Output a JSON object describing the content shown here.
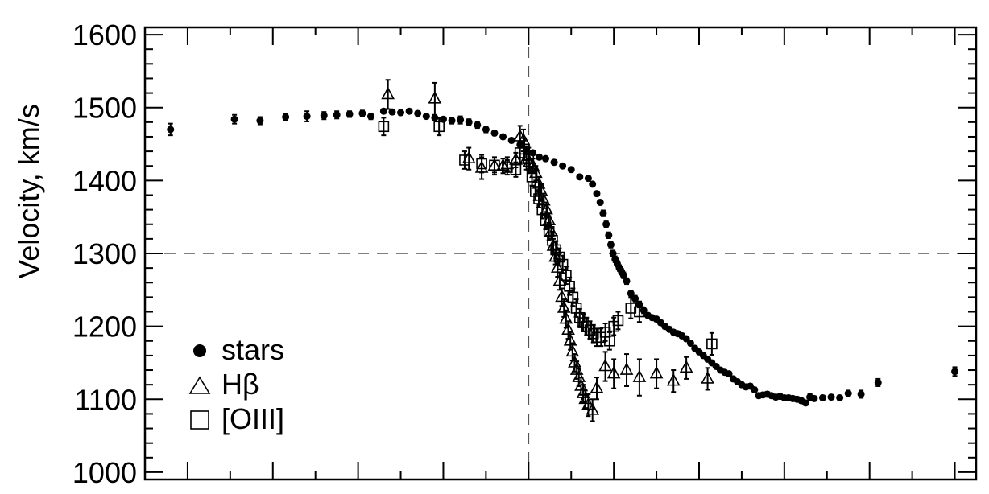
{
  "chart_data": {
    "type": "scatter",
    "title": "",
    "xlabel": "",
    "ylabel": "Velocity, km/s",
    "xlim": [
      -90,
      105
    ],
    "ylim": [
      990,
      1610
    ],
    "yticks": [
      1000,
      1100,
      1200,
      1300,
      1400,
      1500,
      1600
    ],
    "ref_x": 0,
    "ref_y": 1300,
    "grid": false,
    "legend_position": "bottom-left",
    "series": [
      {
        "name": "stars",
        "marker": "filled-circle",
        "points": [
          [
            -84,
            1470,
            8
          ],
          [
            -69,
            1484,
            6
          ],
          [
            -63,
            1482,
            5
          ],
          [
            -57,
            1487,
            4
          ],
          [
            -52,
            1488,
            7
          ],
          [
            -48,
            1489,
            5
          ],
          [
            -45,
            1490,
            5
          ],
          [
            -42,
            1491,
            4
          ],
          [
            -39,
            1492,
            4
          ],
          [
            -37,
            1488,
            4
          ],
          [
            -34,
            1495,
            3
          ],
          [
            -32,
            1494,
            3
          ],
          [
            -30,
            1493,
            3
          ],
          [
            -28,
            1495,
            3
          ],
          [
            -26,
            1492,
            3
          ],
          [
            -24,
            1488,
            3
          ],
          [
            -22,
            1486,
            3
          ],
          [
            -20,
            1484,
            3
          ],
          [
            -18,
            1482,
            4
          ],
          [
            -16,
            1483,
            5
          ],
          [
            -14,
            1480,
            4
          ],
          [
            -12,
            1476,
            4
          ],
          [
            -10,
            1470,
            4
          ],
          [
            -8,
            1465,
            3
          ],
          [
            -6,
            1460,
            3
          ],
          [
            -4,
            1455,
            3
          ],
          [
            -2,
            1449,
            3
          ],
          [
            -0.5,
            1443,
            3
          ],
          [
            1,
            1438,
            3
          ],
          [
            2.5,
            1432,
            3
          ],
          [
            4,
            1430,
            3
          ],
          [
            6,
            1425,
            3
          ],
          [
            8,
            1420,
            3
          ],
          [
            10,
            1415,
            3
          ],
          [
            12,
            1405,
            3
          ],
          [
            14,
            1403,
            3
          ],
          [
            15,
            1395,
            3
          ],
          [
            16,
            1382,
            3
          ],
          [
            16.8,
            1370,
            3
          ],
          [
            17.5,
            1355,
            4
          ],
          [
            18.2,
            1340,
            4
          ],
          [
            18.8,
            1325,
            4
          ],
          [
            19.3,
            1312,
            4
          ],
          [
            19.8,
            1300,
            4
          ],
          [
            20.3,
            1292,
            4
          ],
          [
            20.8,
            1286,
            4
          ],
          [
            21.3,
            1280,
            4
          ],
          [
            21.8,
            1275,
            4
          ],
          [
            22.3,
            1270,
            4
          ],
          [
            23,
            1262,
            4
          ],
          [
            24,
            1245,
            4
          ],
          [
            25,
            1238,
            4
          ],
          [
            26,
            1230,
            4
          ],
          [
            27,
            1222,
            4
          ],
          [
            28,
            1215,
            3
          ],
          [
            29,
            1212,
            3
          ],
          [
            30,
            1210,
            3
          ],
          [
            31,
            1205,
            3
          ],
          [
            32,
            1200,
            3
          ],
          [
            33,
            1196,
            3
          ],
          [
            34,
            1192,
            3
          ],
          [
            35,
            1190,
            3
          ],
          [
            36,
            1187,
            3
          ],
          [
            37,
            1183,
            3
          ],
          [
            38,
            1177,
            3
          ],
          [
            39,
            1170,
            3
          ],
          [
            40,
            1165,
            3
          ],
          [
            41,
            1160,
            3
          ],
          [
            42,
            1155,
            3
          ],
          [
            43,
            1150,
            3
          ],
          [
            44,
            1145,
            3
          ],
          [
            45,
            1140,
            3
          ],
          [
            46,
            1137,
            3
          ],
          [
            47,
            1135,
            3
          ],
          [
            48,
            1128,
            3
          ],
          [
            49,
            1124,
            3
          ],
          [
            50,
            1120,
            3
          ],
          [
            51,
            1117,
            3
          ],
          [
            52,
            1118,
            3
          ],
          [
            53,
            1113,
            3
          ],
          [
            54,
            1105,
            3
          ],
          [
            55,
            1106,
            3
          ],
          [
            56,
            1107,
            3
          ],
          [
            57,
            1105,
            3
          ],
          [
            58,
            1103,
            3
          ],
          [
            59,
            1104,
            3
          ],
          [
            60,
            1102,
            3
          ],
          [
            61,
            1102,
            3
          ],
          [
            62,
            1101,
            3
          ],
          [
            63,
            1100,
            3
          ],
          [
            64,
            1098,
            3
          ],
          [
            65,
            1095,
            3
          ],
          [
            66,
            1103,
            4
          ],
          [
            67,
            1101,
            3
          ],
          [
            69,
            1102,
            3
          ],
          [
            71,
            1103,
            3
          ],
          [
            73,
            1102,
            3
          ],
          [
            75,
            1108,
            4
          ],
          [
            78,
            1107,
            5
          ],
          [
            82,
            1123,
            5
          ],
          [
            100,
            1138,
            6
          ]
        ]
      },
      {
        "name": "Hβ",
        "marker": "open-triangle",
        "points": [
          [
            -33,
            1518,
            20
          ],
          [
            -22,
            1512,
            22
          ],
          [
            -14,
            1430,
            15
          ],
          [
            -11,
            1417,
            15
          ],
          [
            -8,
            1420,
            12
          ],
          [
            -6,
            1420,
            10
          ],
          [
            -5,
            1422,
            10
          ],
          [
            -3,
            1428,
            10
          ],
          [
            -2,
            1460,
            15
          ],
          [
            -1.2,
            1455,
            15
          ],
          [
            -0.5,
            1430,
            15
          ],
          [
            0.2,
            1425,
            15
          ],
          [
            1,
            1420,
            10
          ],
          [
            1.7,
            1410,
            10
          ],
          [
            2.4,
            1395,
            10
          ],
          [
            3,
            1385,
            10
          ],
          [
            3.6,
            1372,
            10
          ],
          [
            4.2,
            1360,
            10
          ],
          [
            4.8,
            1345,
            10
          ],
          [
            5.3,
            1330,
            10
          ],
          [
            5.8,
            1310,
            10
          ],
          [
            6.3,
            1295,
            10
          ],
          [
            6.8,
            1280,
            12
          ],
          [
            7.3,
            1262,
            12
          ],
          [
            7.8,
            1240,
            12
          ],
          [
            8.3,
            1225,
            12
          ],
          [
            8.8,
            1210,
            12
          ],
          [
            9.3,
            1195,
            12
          ],
          [
            9.8,
            1180,
            12
          ],
          [
            10.3,
            1165,
            12
          ],
          [
            10.8,
            1150,
            12
          ],
          [
            11.3,
            1140,
            12
          ],
          [
            11.8,
            1130,
            12
          ],
          [
            12.3,
            1118,
            12
          ],
          [
            12.8,
            1108,
            12
          ],
          [
            13.3,
            1100,
            12
          ],
          [
            14,
            1092,
            15
          ],
          [
            15,
            1085,
            15
          ],
          [
            16,
            1115,
            15
          ],
          [
            18,
            1145,
            20
          ],
          [
            20,
            1135,
            20
          ],
          [
            23,
            1140,
            22
          ],
          [
            26,
            1130,
            25
          ],
          [
            30,
            1135,
            20
          ],
          [
            34,
            1125,
            15
          ],
          [
            37,
            1143,
            15
          ],
          [
            42,
            1128,
            15
          ]
        ]
      },
      {
        "name": "[OIII]",
        "marker": "open-square",
        "points": [
          [
            -34,
            1474,
            12
          ],
          [
            -21,
            1474,
            12
          ],
          [
            -15,
            1428,
            12
          ],
          [
            -11,
            1423,
            12
          ],
          [
            -8,
            1421,
            10
          ],
          [
            -5,
            1418,
            10
          ],
          [
            -3,
            1415,
            10
          ],
          [
            -2,
            1438,
            15
          ],
          [
            -1,
            1443,
            15
          ],
          [
            0,
            1430,
            15
          ],
          [
            0.8,
            1405,
            12
          ],
          [
            1.6,
            1385,
            12
          ],
          [
            2.4,
            1375,
            12
          ],
          [
            3.2,
            1360,
            12
          ],
          [
            4,
            1345,
            12
          ],
          [
            4.8,
            1330,
            12
          ],
          [
            5.6,
            1318,
            12
          ],
          [
            6.4,
            1305,
            12
          ],
          [
            7.2,
            1295,
            12
          ],
          [
            8,
            1285,
            12
          ],
          [
            8.8,
            1270,
            12
          ],
          [
            9.6,
            1255,
            12
          ],
          [
            10.4,
            1240,
            12
          ],
          [
            11.2,
            1225,
            12
          ],
          [
            12,
            1212,
            12
          ],
          [
            12.8,
            1205,
            12
          ],
          [
            13.6,
            1200,
            12
          ],
          [
            14.4,
            1195,
            12
          ],
          [
            15.2,
            1190,
            12
          ],
          [
            16,
            1185,
            12
          ],
          [
            17,
            1185,
            12
          ],
          [
            18,
            1192,
            12
          ],
          [
            19,
            1180,
            12
          ],
          [
            20,
            1200,
            12
          ],
          [
            21,
            1208,
            12
          ],
          [
            24,
            1225,
            14
          ],
          [
            26,
            1220,
            14
          ],
          [
            43,
            1176,
            15
          ]
        ]
      }
    ]
  },
  "legend": {
    "stars_label": "stars",
    "hbeta_label": "Hβ",
    "oiii_label": "[OIII]"
  }
}
